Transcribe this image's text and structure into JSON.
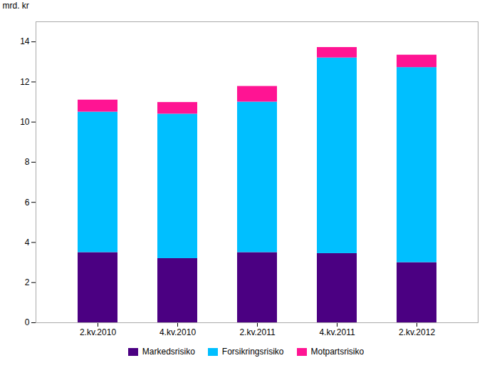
{
  "chart_data": {
    "type": "bar",
    "stacked": true,
    "categories": [
      "2.kv.2010",
      "4.kv.2010",
      "2.kv.2011",
      "4.kv.2011",
      "2.kv.2012"
    ],
    "series": [
      {
        "name": "Markedsrisiko",
        "color": "#4B0082",
        "values": [
          3.5,
          3.2,
          3.5,
          3.45,
          3.0
        ]
      },
      {
        "name": "Forsikringsrisiko",
        "color": "#00BFFF",
        "values": [
          7.0,
          7.2,
          7.5,
          9.75,
          9.72
        ]
      },
      {
        "name": "Motpartsrisiko",
        "color": "#FF1493",
        "values": [
          0.6,
          0.58,
          0.78,
          0.52,
          0.62
        ]
      }
    ],
    "ylabel": "mrd. kr",
    "ylim": [
      0,
      15
    ],
    "yticks": [
      0,
      2,
      4,
      6,
      8,
      10,
      12,
      14
    ],
    "grid": false,
    "legend": "bottom"
  }
}
